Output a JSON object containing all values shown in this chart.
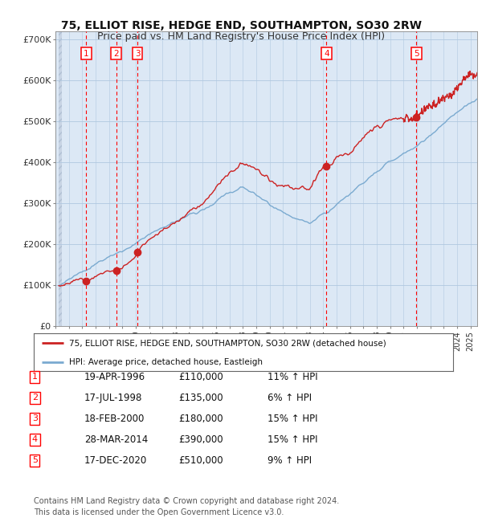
{
  "title": "75, ELLIOT RISE, HEDGE END, SOUTHAMPTON, SO30 2RW",
  "subtitle": "Price paid vs. HM Land Registry's House Price Index (HPI)",
  "title_fontsize": 10,
  "subtitle_fontsize": 9,
  "ylabel_ticks": [
    "£0",
    "£100K",
    "£200K",
    "£300K",
    "£400K",
    "£500K",
    "£600K",
    "£700K"
  ],
  "ytick_values": [
    0,
    100000,
    200000,
    300000,
    400000,
    500000,
    600000,
    700000
  ],
  "ylim": [
    0,
    720000
  ],
  "xlim_start": 1994.25,
  "xlim_end": 2025.5,
  "hpi_line_color": "#7aaad0",
  "price_line_color": "#cc2222",
  "plot_bg_color": "#dce8f5",
  "grid_color": "#c8d8e8",
  "sale_dates_x": [
    1996.3,
    1998.54,
    2000.12,
    2014.24,
    2020.96
  ],
  "sale_prices": [
    110000,
    135000,
    180000,
    390000,
    510000
  ],
  "sale_labels": [
    "1",
    "2",
    "3",
    "4",
    "5"
  ],
  "legend_line1": "75, ELLIOT RISE, HEDGE END, SOUTHAMPTON, SO30 2RW (detached house)",
  "legend_line2": "HPI: Average price, detached house, Eastleigh",
  "table_data": [
    [
      "1",
      "19-APR-1996",
      "£110,000",
      "11% ↑ HPI"
    ],
    [
      "2",
      "17-JUL-1998",
      "£135,000",
      "6% ↑ HPI"
    ],
    [
      "3",
      "18-FEB-2000",
      "£180,000",
      "15% ↑ HPI"
    ],
    [
      "4",
      "28-MAR-2014",
      "£390,000",
      "15% ↑ HPI"
    ],
    [
      "5",
      "17-DEC-2020",
      "£510,000",
      "9% ↑ HPI"
    ]
  ],
  "footnote": "Contains HM Land Registry data © Crown copyright and database right 2024.\nThis data is licensed under the Open Government Licence v3.0.",
  "footnote_fontsize": 7
}
